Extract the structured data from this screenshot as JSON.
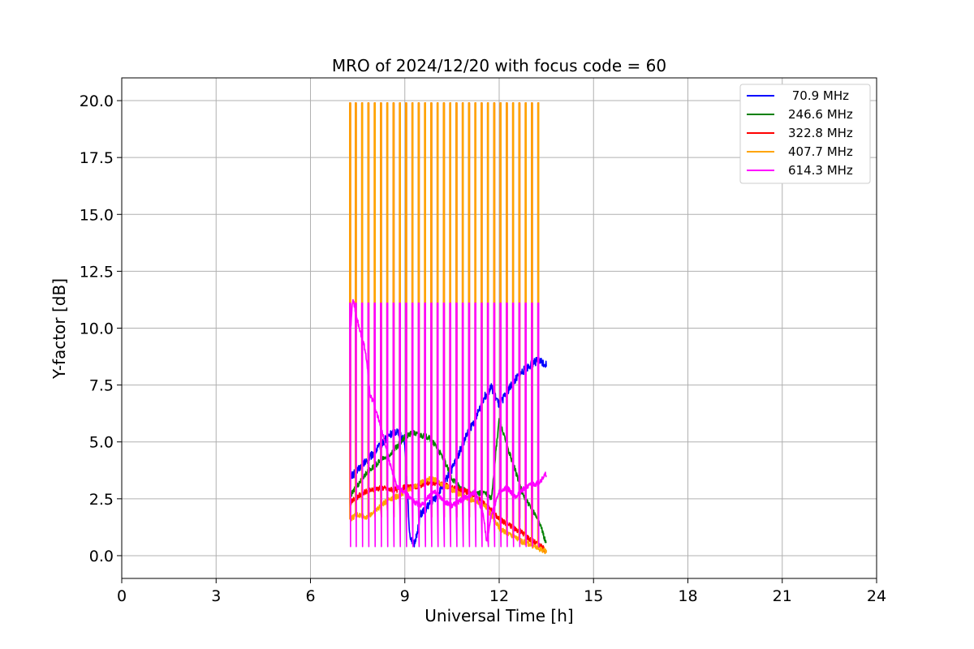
{
  "chart_data": {
    "type": "line",
    "title": "MRO of 2024/12/20 with focus code = 60",
    "xlabel": "Universal Time [h]",
    "ylabel": "Y-factor [dB]",
    "xlim": [
      0,
      24
    ],
    "ylim": [
      -1,
      21
    ],
    "xticks": [
      0,
      3,
      6,
      9,
      12,
      15,
      18,
      21,
      24
    ],
    "yticks": [
      0.0,
      2.5,
      5.0,
      7.5,
      10.0,
      12.5,
      15.0,
      17.5,
      20.0
    ],
    "xtick_labels": [
      "0",
      "3",
      "6",
      "9",
      "12",
      "15",
      "18",
      "21",
      "24"
    ],
    "ytick_labels": [
      "0.0",
      "2.5",
      "5.0",
      "7.5",
      "10.0",
      "12.5",
      "15.0",
      "17.5",
      "20.0"
    ],
    "grid": true,
    "legend": "top-right",
    "spikes": {
      "start": 7.22,
      "period": 0.2,
      "end": 13.25,
      "spike_hi": [
        19.9,
        19.9,
        11.1
      ],
      "spike_lo": [
        1.7,
        1.7,
        0.4
      ]
    },
    "series": [
      {
        "name": " 70.9 MHz",
        "color": "#0000ff",
        "x": [
          7.25,
          7.5,
          7.75,
          8.0,
          8.25,
          8.5,
          8.75,
          9.0,
          9.15,
          9.3,
          9.5,
          9.75,
          10.0,
          10.25,
          10.5,
          10.75,
          11.0,
          11.25,
          11.5,
          11.75,
          12.0,
          12.25,
          12.5,
          12.75,
          13.0,
          13.25,
          13.5
        ],
        "y": [
          3.4,
          3.8,
          4.1,
          4.5,
          4.9,
          5.3,
          5.5,
          5.0,
          1.0,
          0.4,
          1.8,
          2.2,
          2.6,
          3.2,
          3.8,
          4.6,
          5.4,
          6.0,
          6.9,
          7.4,
          6.6,
          7.2,
          7.7,
          8.1,
          8.4,
          8.6,
          8.4
        ]
      },
      {
        "name": "246.6 MHz",
        "color": "#008000",
        "x": [
          7.25,
          7.5,
          7.75,
          8.0,
          8.25,
          8.5,
          8.75,
          9.0,
          9.25,
          9.5,
          9.75,
          10.0,
          10.25,
          10.5,
          10.75,
          11.0,
          11.25,
          11.5,
          11.75,
          12.0,
          12.25,
          12.5,
          12.75,
          13.0,
          13.25,
          13.5
        ],
        "y": [
          2.6,
          3.1,
          3.6,
          3.9,
          4.2,
          4.4,
          4.8,
          5.2,
          5.4,
          5.3,
          5.2,
          4.8,
          4.2,
          3.4,
          3.0,
          2.8,
          2.7,
          2.8,
          2.5,
          6.0,
          4.8,
          3.8,
          2.7,
          2.1,
          1.6,
          0.5
        ]
      },
      {
        "name": "322.8 MHz",
        "color": "#ff0000",
        "x": [
          7.25,
          7.5,
          7.75,
          8.0,
          8.25,
          8.5,
          8.75,
          9.0,
          9.25,
          9.5,
          9.75,
          10.0,
          10.25,
          10.5,
          10.75,
          11.0,
          11.25,
          11.5,
          11.75,
          12.0,
          12.25,
          12.5,
          12.75,
          13.0,
          13.25,
          13.5
        ],
        "y": [
          2.3,
          2.6,
          2.8,
          2.9,
          3.0,
          2.9,
          2.9,
          3.0,
          3.0,
          3.1,
          3.2,
          3.2,
          3.1,
          3.0,
          2.9,
          2.8,
          2.6,
          2.3,
          2.0,
          1.6,
          1.4,
          1.2,
          1.0,
          0.7,
          0.5,
          0.2
        ]
      },
      {
        "name": "407.7 MHz",
        "color": "#ffa500",
        "x": [
          7.25,
          7.5,
          7.75,
          8.0,
          8.25,
          8.5,
          8.75,
          9.0,
          9.25,
          9.5,
          9.75,
          10.0,
          10.25,
          10.5,
          10.75,
          11.0,
          11.25,
          11.5,
          11.75,
          12.0,
          12.25,
          12.5,
          12.75,
          13.0,
          13.25,
          13.5
        ],
        "y": [
          1.6,
          1.8,
          1.7,
          1.9,
          2.2,
          2.5,
          2.6,
          2.8,
          3.0,
          3.2,
          3.4,
          3.3,
          3.1,
          2.9,
          2.7,
          2.5,
          2.4,
          2.3,
          1.8,
          1.2,
          1.0,
          0.8,
          0.6,
          0.5,
          0.3,
          0.2
        ]
      },
      {
        "name": "614.3 MHz",
        "color": "#ff00ff",
        "x": [
          7.25,
          7.35,
          7.5,
          7.75,
          7.9,
          8.0,
          8.25,
          8.5,
          8.75,
          9.0,
          9.25,
          9.5,
          9.75,
          10.0,
          10.25,
          10.5,
          10.75,
          11.0,
          11.25,
          11.5,
          11.6,
          11.75,
          12.0,
          12.25,
          12.5,
          12.75,
          13.0,
          13.25,
          13.5
        ],
        "y": [
          9.5,
          11.3,
          10.3,
          9.0,
          7.0,
          6.8,
          5.6,
          4.2,
          3.0,
          2.8,
          2.4,
          2.2,
          2.6,
          2.8,
          2.4,
          2.2,
          2.4,
          2.6,
          2.8,
          1.8,
          0.6,
          1.8,
          2.8,
          3.0,
          2.6,
          2.9,
          3.1,
          3.2,
          3.6
        ]
      }
    ]
  }
}
